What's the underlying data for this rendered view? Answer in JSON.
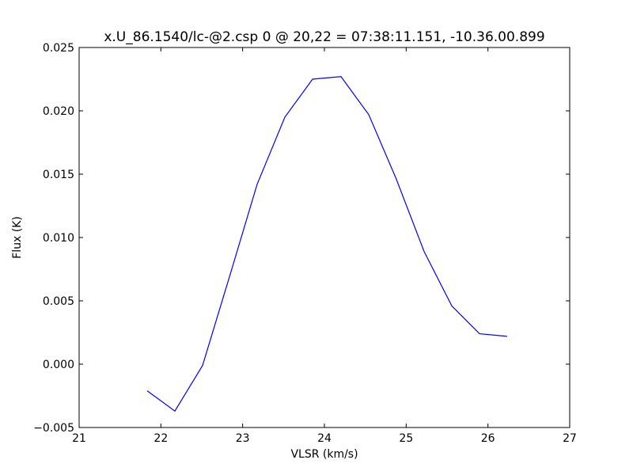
{
  "chart_data": {
    "type": "line",
    "title": "x.U_86.1540/lc-@2.csp 0 @ 20,22 = 07:38:11.151, -10.36.00.899",
    "x_label": "VLSR (km/s)",
    "y_label": "Flux (K)",
    "x": [
      21.832,
      22.171,
      22.51,
      22.848,
      23.177,
      23.516,
      23.855,
      24.203,
      24.542,
      24.88,
      25.219,
      25.558,
      25.897,
      26.235
    ],
    "values": [
      -0.0021,
      -0.0037,
      -0.0001,
      0.0071,
      0.0142,
      0.0195,
      0.0225,
      0.0227,
      0.0197,
      0.0146,
      0.0089,
      0.0046,
      0.0024,
      0.0022
    ],
    "color": "#0000ff",
    "xlim": [
      21,
      27
    ],
    "xticks": [
      21,
      22,
      23,
      24,
      25,
      26,
      27
    ],
    "ylim": [
      -0.005,
      0.025
    ],
    "yticks": [
      {
        "value": -0.005,
        "label": "−0.005"
      },
      {
        "value": 0,
        "label": "0.000"
      },
      {
        "value": 0.005,
        "label": "0.005"
      },
      {
        "value": 0.01,
        "label": "0.010"
      },
      {
        "value": 0.015,
        "label": "0.015"
      },
      {
        "value": 0.02,
        "label": "0.020"
      },
      {
        "value": 0.025,
        "label": "0.025"
      }
    ]
  }
}
